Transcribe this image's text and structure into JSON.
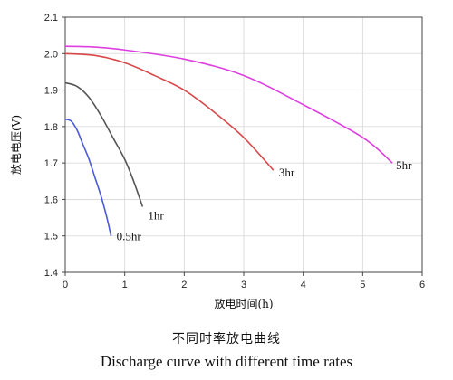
{
  "chart_data": {
    "type": "line",
    "xlabel": "放电时间(h)",
    "ylabel": "放电电压(V)",
    "xlim": [
      0,
      6
    ],
    "ylim": [
      1.4,
      2.1
    ],
    "x_ticks": [
      0,
      1,
      2,
      3,
      4,
      5,
      6
    ],
    "y_ticks": [
      1.4,
      1.5,
      1.6,
      1.7,
      1.8,
      1.9,
      2.0,
      2.1
    ],
    "x_tick_labels": [
      "0",
      "1",
      "2",
      "3",
      "4",
      "5",
      "6"
    ],
    "y_tick_labels": [
      "1.4",
      "1.5",
      "1.6",
      "1.7",
      "1.8",
      "1.9",
      "2.0",
      "2.1"
    ],
    "grid": true,
    "legend": "none (series labeled inline at curve ends)",
    "series": [
      {
        "name": "0.5hr",
        "color": "#4a5ad8",
        "points": [
          [
            0,
            1.82
          ],
          [
            0.1,
            1.815
          ],
          [
            0.2,
            1.79
          ],
          [
            0.3,
            1.75
          ],
          [
            0.4,
            1.71
          ],
          [
            0.5,
            1.66
          ],
          [
            0.6,
            1.61
          ],
          [
            0.7,
            1.55
          ],
          [
            0.77,
            1.5
          ]
        ]
      },
      {
        "name": "1hr",
        "color": "#555555",
        "points": [
          [
            0,
            1.92
          ],
          [
            0.2,
            1.91
          ],
          [
            0.4,
            1.88
          ],
          [
            0.6,
            1.83
          ],
          [
            0.8,
            1.77
          ],
          [
            1.0,
            1.71
          ],
          [
            1.15,
            1.65
          ],
          [
            1.3,
            1.58
          ]
        ]
      },
      {
        "name": "3hr",
        "color": "#d8484a",
        "points": [
          [
            0,
            2.0
          ],
          [
            0.5,
            1.995
          ],
          [
            1.0,
            1.975
          ],
          [
            1.5,
            1.94
          ],
          [
            2.0,
            1.9
          ],
          [
            2.5,
            1.84
          ],
          [
            3.0,
            1.77
          ],
          [
            3.5,
            1.68
          ]
        ]
      },
      {
        "name": "5hr",
        "color": "#dd3fe0",
        "points": [
          [
            0,
            2.02
          ],
          [
            0.5,
            2.018
          ],
          [
            1.0,
            2.01
          ],
          [
            2.0,
            1.985
          ],
          [
            3.0,
            1.94
          ],
          [
            4.0,
            1.86
          ],
          [
            5.0,
            1.77
          ],
          [
            5.5,
            1.7
          ]
        ]
      }
    ]
  },
  "captions": {
    "chinese": "不同时率放电曲线",
    "english": "Discharge curve with different time rates"
  }
}
